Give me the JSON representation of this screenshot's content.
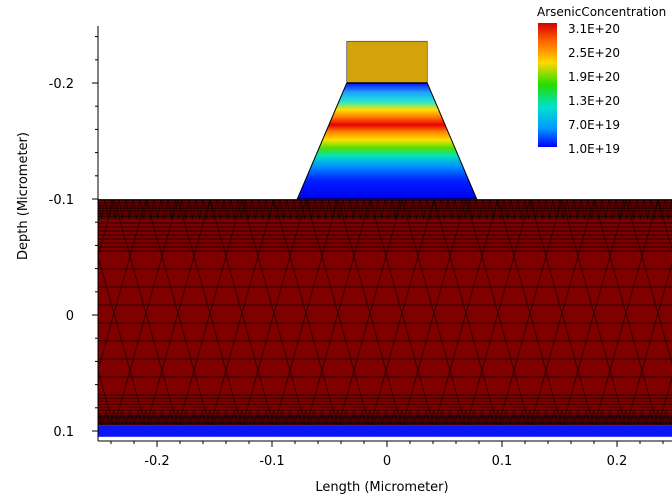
{
  "chart_data": {
    "type": "heatmap",
    "title": "",
    "xlabel": "Length (Micrometer)",
    "ylabel": "Depth (Micrometer)",
    "xlim": [
      -0.25,
      0.25
    ],
    "ylim": [
      -0.25,
      0.105
    ],
    "y_inverted": true,
    "x_ticks": [
      -0.2,
      -0.1,
      0,
      0.1,
      0.2
    ],
    "x_tick_labels": [
      "-0.2",
      "-0.1",
      "0",
      "0.1",
      "0.2"
    ],
    "y_ticks": [
      -0.2,
      -0.1,
      0,
      0.1
    ],
    "y_tick_labels": [
      "-0.2",
      "-0.1",
      "0",
      "0.1"
    ],
    "grid": false,
    "legend": {
      "title": "ArsenicConcentration",
      "placement": "top-right",
      "labels": [
        "3.1E+20",
        "2.5E+20",
        "1.9E+20",
        "1.3E+20",
        "7.0E+19",
        "1.0E+19"
      ]
    },
    "regions": {
      "cap": {
        "x": [
          -0.035,
          0.035
        ],
        "y": [
          -0.236,
          -0.2
        ],
        "color": "#d4a20a"
      },
      "trapezoid": {
        "top_x": [
          -0.035,
          0.035
        ],
        "bottom_x": [
          -0.078,
          0.078
        ],
        "y": [
          -0.2,
          -0.1
        ]
      },
      "substrate": {
        "x": [
          -0.25,
          0.25
        ],
        "y": [
          -0.1,
          0.095
        ],
        "color": "#800000"
      },
      "bottom_strip": {
        "x": [
          -0.25,
          0.25
        ],
        "y": [
          0.095,
          0.105
        ],
        "color": "#0a14f5"
      }
    },
    "colors": {
      "mesh_line": "#000000",
      "colorbar_top": "#d40000",
      "colorbar_bottom": "#0000ff"
    }
  }
}
